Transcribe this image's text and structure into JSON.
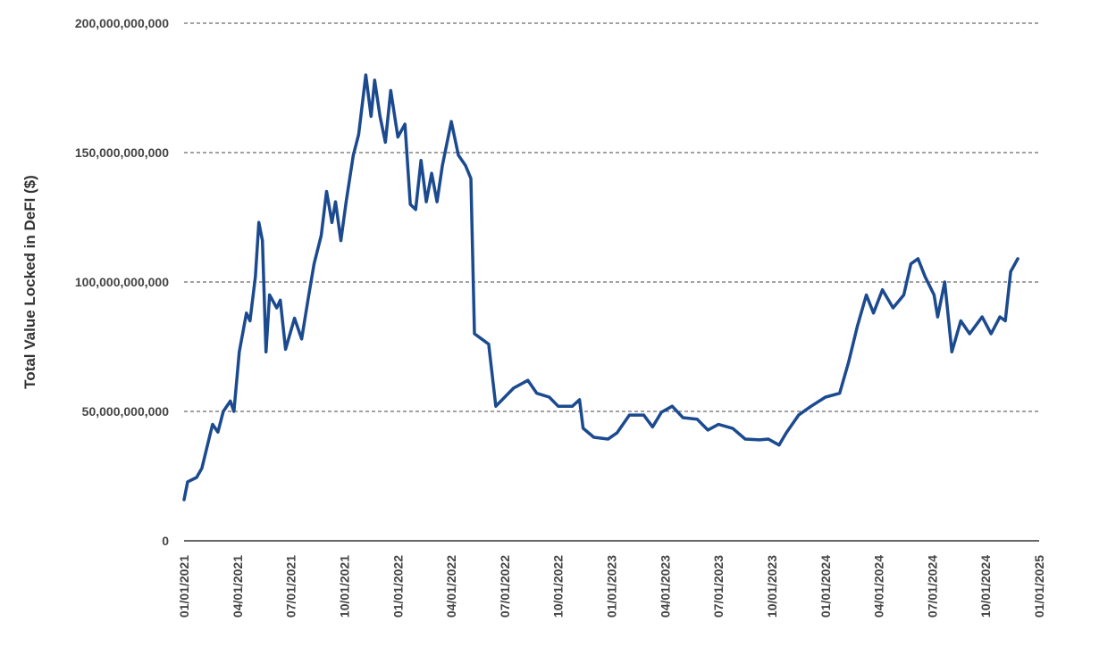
{
  "chart_data": {
    "type": "line",
    "title": "",
    "xlabel": "",
    "ylabel": "Total Value Locked in DeFI ($)",
    "x_unit": "months since 01/01/2021",
    "xlim": [
      0,
      48
    ],
    "ylim": [
      0,
      200000000000
    ],
    "grid": "horizontal dashed",
    "line_color": "#1b4a8f",
    "y_ticks": [
      {
        "value": 0,
        "label": "0"
      },
      {
        "value": 50000000000,
        "label": "50,000,000,000"
      },
      {
        "value": 100000000000,
        "label": "100,000,000,000"
      },
      {
        "value": 150000000000,
        "label": "150,000,000,000"
      },
      {
        "value": 200000000000,
        "label": "200,000,000,000"
      }
    ],
    "x_ticks": [
      {
        "value": 0,
        "label": "01/01/2021"
      },
      {
        "value": 3,
        "label": "04/01/2021"
      },
      {
        "value": 6,
        "label": "07/01/2021"
      },
      {
        "value": 9,
        "label": "10/01/2021"
      },
      {
        "value": 12,
        "label": "01/01/2022"
      },
      {
        "value": 15,
        "label": "04/01/2022"
      },
      {
        "value": 18,
        "label": "07/01/2022"
      },
      {
        "value": 21,
        "label": "10/01/2022"
      },
      {
        "value": 24,
        "label": "01/01/2023"
      },
      {
        "value": 27,
        "label": "04/01/2023"
      },
      {
        "value": 30,
        "label": "07/01/2023"
      },
      {
        "value": 33,
        "label": "10/01/2023"
      },
      {
        "value": 36,
        "label": "01/01/2024"
      },
      {
        "value": 39,
        "label": "04/01/2024"
      },
      {
        "value": 42,
        "label": "07/01/2024"
      },
      {
        "value": 45,
        "label": "10/01/2024"
      },
      {
        "value": 48,
        "label": "01/01/2025"
      }
    ],
    "series": [
      {
        "name": "Total Value Locked in DeFi",
        "unit": "billion USD",
        "x": [
          0,
          0.2,
          0.7,
          1.0,
          1.3,
          1.6,
          1.9,
          2.2,
          2.6,
          2.8,
          3.1,
          3.5,
          3.7,
          4.0,
          4.2,
          4.4,
          4.6,
          4.8,
          5.2,
          5.4,
          5.7,
          6.2,
          6.6,
          7.0,
          7.3,
          7.7,
          8.0,
          8.3,
          8.5,
          8.8,
          9.1,
          9.5,
          9.8,
          10.2,
          10.5,
          10.7,
          11.0,
          11.3,
          11.6,
          12.0,
          12.4,
          12.7,
          13.0,
          13.3,
          13.6,
          13.9,
          14.2,
          14.5,
          15.0,
          15.4,
          15.8,
          16.1,
          16.3,
          16.7,
          17.1,
          17.5,
          18.0,
          18.5,
          19.3,
          19.8,
          20.5,
          21.0,
          21.8,
          22.2,
          22.4,
          23.0,
          23.8,
          24.3,
          25.0,
          25.8,
          26.3,
          26.8,
          27.4,
          28.0,
          28.8,
          29.4,
          30.0,
          30.8,
          31.5,
          32.3,
          32.8,
          33.4,
          33.8,
          34.5,
          35.2,
          36.0,
          36.8,
          37.3,
          37.8,
          38.3,
          38.7,
          39.2,
          39.8,
          40.4,
          40.8,
          41.2,
          41.6,
          42.1,
          42.3,
          42.7,
          43.1,
          43.6,
          44.1,
          44.8,
          45.3,
          45.8,
          46.1,
          46.4,
          46.8
        ],
        "values": [
          15.9,
          22.8,
          24.5,
          28,
          36.5,
          45,
          42,
          50,
          54,
          50,
          73,
          88,
          85,
          102,
          123,
          116,
          73,
          95,
          90,
          93,
          74,
          86,
          78,
          95,
          107,
          118,
          135,
          123,
          131,
          116,
          131,
          149,
          157,
          180,
          164,
          178,
          164,
          154,
          174,
          156,
          161,
          130,
          128,
          147,
          131,
          142,
          131,
          145,
          162,
          149,
          145,
          140,
          80,
          78,
          76,
          52,
          55.5,
          59,
          62,
          57,
          55.5,
          52,
          52,
          54.5,
          43.5,
          40,
          39.3,
          41.7,
          48.6,
          48.6,
          44,
          49.7,
          52,
          47.6,
          47,
          42.8,
          45,
          43.4,
          39.3,
          39,
          39.3,
          37,
          41.7,
          48.6,
          52,
          55.5,
          57,
          69,
          83,
          95,
          88,
          97,
          90,
          95,
          107,
          109,
          102,
          95,
          86.5,
          100,
          73,
          85,
          80,
          86.5,
          80,
          86.5,
          85,
          104,
          109
        ]
      }
    ]
  }
}
